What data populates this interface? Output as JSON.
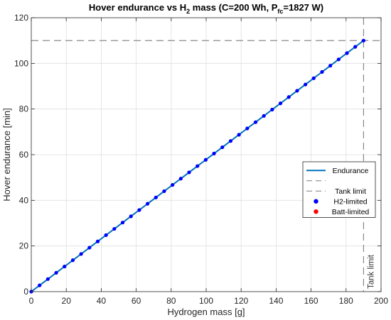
{
  "chart_data": {
    "type": "line",
    "title": {
      "main": "Hover endurance vs H",
      "h2_subscript": "2",
      "mid": " mass  (C=200 Wh, P",
      "p_subscript": "fc",
      "end": "=1827 W)"
    },
    "xlabel": "Hydrogen mass [g]",
    "ylabel": "Hover endurance [min]",
    "xlim": [
      0,
      200
    ],
    "ylim": [
      0,
      120
    ],
    "xticks": [
      0,
      20,
      40,
      60,
      80,
      100,
      120,
      140,
      160,
      180,
      200
    ],
    "yticks": [
      0,
      20,
      40,
      60,
      80,
      100,
      120
    ],
    "grid": true,
    "colors": {
      "endurance": "#0072BD",
      "h2_marker": "#0000FF",
      "batt_marker": "#FF0000",
      "limit_line": "#7f7f7f",
      "grid": "#dfdfdf"
    },
    "series": [
      {
        "name": "Endurance",
        "kind": "line",
        "x": [
          0,
          4.75,
          9.5,
          14.25,
          19,
          23.75,
          28.5,
          33.25,
          38,
          42.75,
          47.5,
          52.25,
          57,
          61.75,
          66.5,
          71.25,
          76,
          80.75,
          85.5,
          90.25,
          95,
          99.75,
          104.5,
          109.25,
          114,
          118.75,
          123.5,
          128.25,
          133,
          137.75,
          142.5,
          147.25,
          152,
          156.75,
          161.5,
          166.25,
          171,
          175.75,
          180.5,
          185.25,
          190
        ],
        "y": [
          0,
          2.75,
          5.5,
          8.25,
          11,
          13.75,
          16.5,
          19.25,
          22,
          24.75,
          27.5,
          30.25,
          33,
          35.75,
          38.5,
          41.25,
          44,
          46.75,
          49.5,
          52.25,
          55,
          57.75,
          60.5,
          63.25,
          66,
          68.75,
          71.5,
          74.25,
          77,
          79.75,
          82.5,
          85.25,
          88,
          90.75,
          93.5,
          96.25,
          99,
          101.75,
          104.5,
          107.25,
          110
        ]
      },
      {
        "name": "",
        "kind": "hline",
        "y": 110
      },
      {
        "name": "Tank limit",
        "kind": "vline",
        "x": 190
      },
      {
        "name": "H2-limited",
        "kind": "markers",
        "x": [
          0,
          4.75,
          9.5,
          14.25,
          19,
          23.75,
          28.5,
          33.25,
          38,
          42.75,
          47.5,
          52.25,
          57,
          61.75,
          66.5,
          71.25,
          76,
          80.75,
          85.5,
          90.25,
          95,
          99.75,
          104.5,
          109.25,
          114,
          118.75,
          123.5,
          128.25,
          133,
          137.75,
          142.5,
          147.25,
          152,
          156.75,
          161.5,
          166.25,
          171,
          175.75,
          180.5,
          185.25,
          190
        ],
        "y": [
          0,
          2.75,
          5.5,
          8.25,
          11,
          13.75,
          16.5,
          19.25,
          22,
          24.75,
          27.5,
          30.25,
          33,
          35.75,
          38.5,
          41.25,
          44,
          46.75,
          49.5,
          52.25,
          55,
          57.75,
          60.5,
          63.25,
          66,
          68.75,
          71.5,
          74.25,
          77,
          79.75,
          82.5,
          85.25,
          88,
          90.75,
          93.5,
          96.25,
          99,
          101.75,
          104.5,
          107.25,
          110
        ]
      },
      {
        "name": "Batt-limited",
        "kind": "markers",
        "x": [],
        "y": []
      }
    ],
    "annotations": [
      {
        "text": "Tank limit",
        "x": 190,
        "orientation": "vertical"
      }
    ],
    "legend": {
      "placement": "right",
      "entries": [
        "Endurance",
        "",
        "Tank limit",
        "H2-limited",
        "Batt-limited"
      ]
    }
  }
}
